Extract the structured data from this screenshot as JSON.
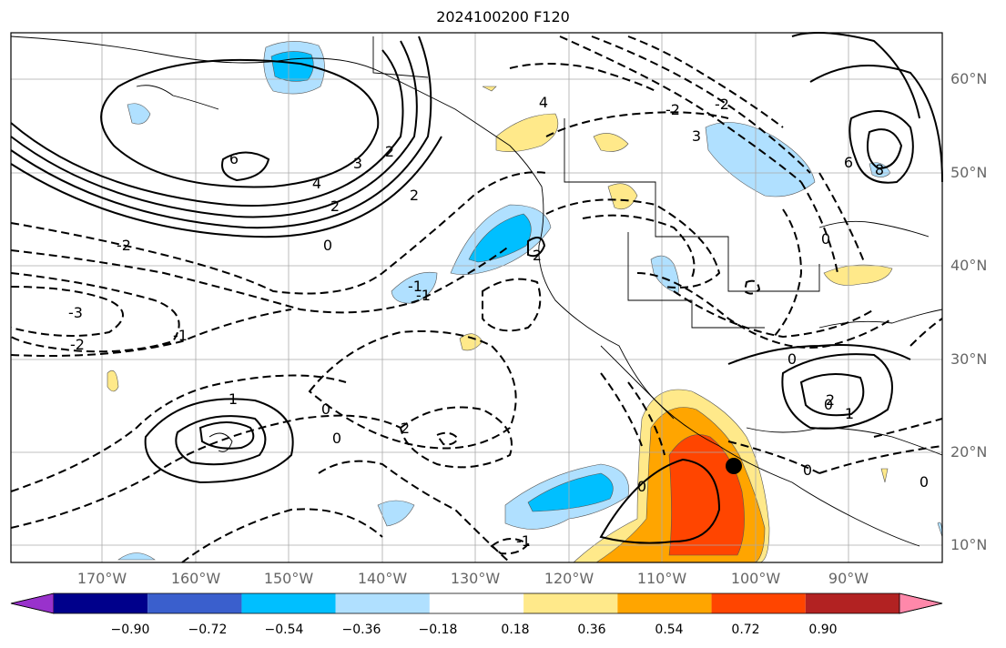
{
  "title": "2024100200 F120",
  "lat_labels": [
    "60°N",
    "50°N",
    "40°N",
    "30°N",
    "20°N",
    "10°N"
  ],
  "lon_labels": [
    "170°W",
    "160°W",
    "150°W",
    "140°W",
    "130°W",
    "120°W",
    "110°W",
    "100°W",
    "90°W"
  ],
  "colorbar": {
    "ticks": [
      "−0.90",
      "−0.72",
      "−0.54",
      "−0.36",
      "−0.18",
      "0.18",
      "0.36",
      "0.54",
      "0.72",
      "0.90"
    ],
    "colors": [
      "#9932cc",
      "#00008b",
      "#3a5fcd",
      "#00bfff",
      "#b0e0ff",
      "#ffffff",
      "#ffe98a",
      "#ffa500",
      "#ff4500",
      "#b22222",
      "#ff88aa"
    ]
  },
  "contour_labels": [
    "6",
    "4",
    "3",
    "2",
    "2",
    "2",
    "-2",
    "-3",
    "-2",
    "-1",
    "0",
    "-1",
    "-1",
    "1",
    "0",
    "0",
    "2",
    "0",
    "-1",
    "4",
    "3",
    "-2",
    "2",
    "-2",
    "0",
    "6",
    "8",
    "0",
    "0",
    "2",
    "1",
    "0",
    "0"
  ],
  "marker": {
    "lat": 18.5,
    "lon": "102.5°W"
  }
}
